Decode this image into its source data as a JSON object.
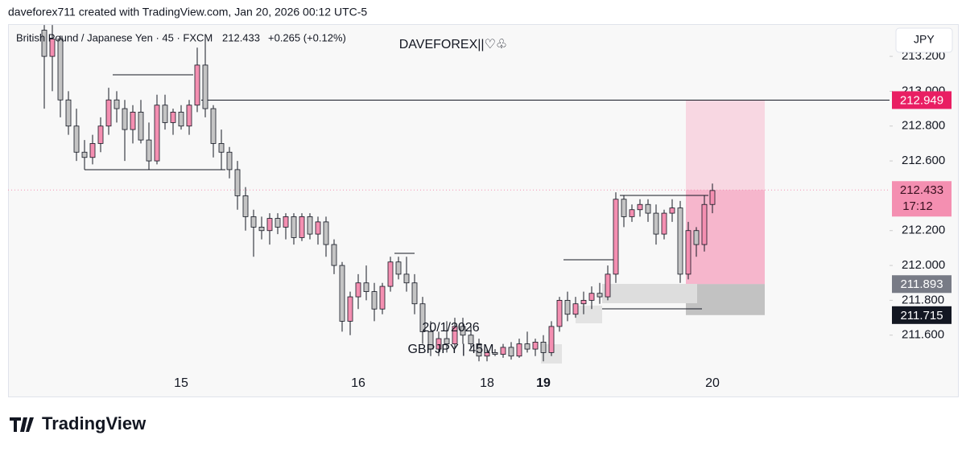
{
  "header": "daveforex711 created with TradingView.com, Jan 20, 2026 00:12 UTC-5",
  "footer": "TradingView",
  "chart_data": {
    "type": "candlestick",
    "symbol": "British Pound / Japanese Yen · 45 · FXCM",
    "last": "212.433",
    "change": "+0.265 (+0.12%)",
    "watermark": "DAVEFOREX||♡♧",
    "annotations": [
      "20/1/2026",
      "GBPJPY | 45M"
    ],
    "currency": "JPY",
    "up_color": "#f48fb1",
    "down_color": "#c4c4c4",
    "ylim": [
      211.248,
      213.385
    ],
    "yticks": [
      {
        "value": 213.2,
        "label": "213.200"
      },
      {
        "value": 213.0,
        "label": "213.000"
      },
      {
        "value": 212.8,
        "label": "212.800"
      },
      {
        "value": 212.6,
        "label": "212.600"
      },
      {
        "value": 212.2,
        "label": "212.200"
      },
      {
        "value": 212.0,
        "label": "212.000"
      },
      {
        "value": 211.8,
        "label": "211.800"
      },
      {
        "value": 211.6,
        "label": "211.600"
      }
    ],
    "position": {
      "target": 212.949,
      "entry": 211.893,
      "stop": 211.715,
      "countdown": "17:12"
    },
    "current": 212.433,
    "categories": [
      null,
      null,
      null,
      null,
      null,
      null,
      null,
      null,
      null,
      null,
      null,
      null,
      null,
      null,
      null,
      null,
      null,
      "15",
      null,
      null,
      null,
      null,
      null,
      null,
      null,
      null,
      null,
      null,
      null,
      null,
      null,
      null,
      null,
      null,
      null,
      null,
      null,
      null,
      null,
      "16",
      null,
      null,
      null,
      null,
      null,
      null,
      null,
      null,
      null,
      null,
      null,
      null,
      null,
      null,
      null,
      "18",
      null,
      null,
      null,
      null,
      null,
      null,
      "19",
      null,
      null,
      null,
      null,
      null,
      null,
      null,
      null,
      null,
      null,
      null,
      null,
      null,
      null,
      null,
      null,
      null,
      null,
      null,
      null,
      "20"
    ],
    "candles": [
      [
        213.35,
        213.38,
        212.9,
        213.2
      ],
      [
        213.2,
        213.38,
        213.0,
        213.3
      ],
      [
        213.3,
        213.32,
        212.85,
        212.95
      ],
      [
        212.95,
        213.0,
        212.75,
        212.8
      ],
      [
        212.8,
        212.9,
        212.6,
        212.65
      ],
      [
        212.65,
        212.72,
        212.55,
        212.62
      ],
      [
        212.62,
        212.75,
        212.58,
        212.7
      ],
      [
        212.7,
        212.85,
        212.65,
        212.8
      ],
      [
        212.8,
        213.02,
        212.75,
        212.95
      ],
      [
        212.95,
        213.0,
        212.82,
        212.9
      ],
      [
        212.9,
        212.95,
        212.6,
        212.78
      ],
      [
        212.78,
        212.92,
        212.7,
        212.88
      ],
      [
        212.88,
        212.95,
        212.7,
        212.72
      ],
      [
        212.72,
        212.82,
        212.55,
        212.6
      ],
      [
        212.6,
        212.98,
        212.58,
        212.92
      ],
      [
        212.92,
        212.98,
        212.78,
        212.82
      ],
      [
        212.82,
        212.9,
        212.75,
        212.88
      ],
      [
        212.88,
        212.92,
        212.78,
        212.8
      ],
      [
        212.8,
        212.95,
        212.75,
        212.92
      ],
      [
        212.92,
        213.25,
        212.88,
        213.15
      ],
      [
        213.15,
        213.3,
        212.85,
        212.9
      ],
      [
        212.9,
        212.92,
        212.62,
        212.7
      ],
      [
        212.7,
        212.78,
        212.55,
        212.65
      ],
      [
        212.65,
        212.68,
        212.5,
        212.55
      ],
      [
        212.55,
        212.6,
        212.32,
        212.4
      ],
      [
        212.4,
        212.45,
        212.2,
        212.28
      ],
      [
        212.28,
        212.32,
        212.05,
        212.22
      ],
      [
        212.22,
        212.28,
        212.15,
        212.2
      ],
      [
        212.2,
        212.3,
        212.12,
        212.27
      ],
      [
        212.27,
        212.3,
        212.18,
        212.22
      ],
      [
        212.22,
        212.3,
        212.15,
        212.28
      ],
      [
        212.28,
        212.3,
        212.12,
        212.16
      ],
      [
        212.16,
        212.3,
        212.14,
        212.28
      ],
      [
        212.28,
        212.3,
        212.15,
        212.18
      ],
      [
        212.18,
        212.28,
        212.12,
        212.25
      ],
      [
        212.25,
        212.28,
        212.05,
        212.12
      ],
      [
        212.12,
        212.15,
        211.95,
        212.0
      ],
      [
        212.0,
        212.02,
        211.62,
        211.68
      ],
      [
        211.68,
        211.85,
        211.6,
        211.82
      ],
      [
        211.82,
        211.95,
        211.75,
        211.9
      ],
      [
        211.9,
        212.0,
        211.8,
        211.85
      ],
      [
        211.85,
        211.9,
        211.68,
        211.75
      ],
      [
        211.75,
        211.9,
        211.72,
        211.88
      ],
      [
        211.88,
        212.05,
        211.85,
        212.02
      ],
      [
        212.02,
        212.05,
        211.92,
        211.95
      ],
      [
        211.95,
        212.05,
        211.85,
        211.9
      ],
      [
        211.9,
        211.95,
        211.72,
        211.78
      ],
      [
        211.78,
        211.82,
        211.55,
        211.62
      ],
      [
        211.62,
        211.68,
        211.48,
        211.52
      ],
      [
        211.52,
        211.62,
        211.48,
        211.58
      ],
      [
        211.58,
        211.68,
        211.5,
        211.55
      ],
      [
        211.55,
        211.7,
        211.52,
        211.65
      ],
      [
        211.65,
        211.7,
        211.55,
        211.6
      ],
      [
        211.6,
        211.65,
        211.52,
        211.55
      ],
      [
        211.55,
        211.58,
        211.45,
        211.48
      ],
      [
        211.48,
        211.52,
        211.45,
        211.5
      ],
      [
        211.5,
        211.52,
        211.48,
        211.49
      ],
      [
        211.49,
        211.55,
        211.47,
        211.53
      ],
      [
        211.53,
        211.56,
        211.46,
        211.48
      ],
      [
        211.48,
        211.58,
        211.47,
        211.55
      ],
      [
        211.55,
        211.62,
        211.5,
        211.52
      ],
      [
        211.52,
        211.58,
        211.48,
        211.56
      ],
      [
        211.56,
        211.6,
        211.45,
        211.5
      ],
      [
        211.5,
        211.68,
        211.48,
        211.65
      ],
      [
        211.65,
        211.82,
        211.62,
        211.8
      ],
      [
        211.8,
        211.85,
        211.68,
        211.72
      ],
      [
        211.72,
        211.82,
        211.7,
        211.78
      ],
      [
        211.78,
        211.85,
        211.72,
        211.8
      ],
      [
        211.8,
        211.88,
        211.75,
        211.84
      ],
      [
        211.84,
        211.9,
        211.78,
        211.82
      ],
      [
        211.82,
        212.0,
        211.8,
        211.95
      ],
      [
        211.95,
        212.42,
        211.9,
        212.38
      ],
      [
        212.38,
        212.4,
        212.22,
        212.28
      ],
      [
        212.28,
        212.35,
        212.25,
        212.32
      ],
      [
        212.32,
        212.38,
        212.28,
        212.35
      ],
      [
        212.35,
        212.38,
        212.25,
        212.3
      ],
      [
        212.3,
        212.35,
        212.12,
        212.18
      ],
      [
        212.18,
        212.32,
        212.15,
        212.3
      ],
      [
        212.3,
        212.38,
        212.25,
        212.33
      ],
      [
        212.33,
        212.37,
        211.9,
        211.95
      ],
      [
        211.95,
        212.25,
        211.92,
        212.2
      ],
      [
        212.2,
        212.22,
        212.05,
        212.12
      ],
      [
        212.12,
        212.4,
        212.08,
        212.35
      ],
      [
        212.35,
        212.47,
        212.3,
        212.43
      ]
    ]
  }
}
